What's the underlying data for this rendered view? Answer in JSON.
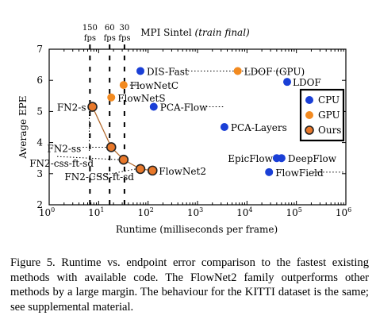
{
  "caption": "Figure 5. Runtime vs. endpoint error comparison to the fastest existing methods with available code. The FlowNet2 family outperforms other methods by a large margin. The behaviour for the KITTI dataset is the same; see supplemental material.",
  "chart_data": {
    "type": "scatter",
    "title": "MPI Sintel",
    "title_suffix": "(train final)",
    "xlabel": "Runtime (milliseconds per frame)",
    "ylabel": "Average EPE",
    "xscale": "log",
    "xlim": [
      1,
      1000000
    ],
    "ylim": [
      2,
      7
    ],
    "x_ticks": [
      1,
      10,
      100,
      1000,
      10000,
      100000,
      1000000
    ],
    "x_tick_labels": [
      "10",
      "10",
      "10",
      "10",
      "10",
      "10",
      "10"
    ],
    "x_tick_exponents": [
      "0",
      "1",
      "2",
      "3",
      "4",
      "5",
      "6"
    ],
    "y_ticks": [
      2,
      3,
      4,
      5,
      6,
      7
    ],
    "y_tick_labels": [
      "2",
      "3",
      "4",
      "5",
      "6",
      "7"
    ],
    "fps_markers": [
      {
        "label": "150",
        "unit": "fps",
        "x": 6.67
      },
      {
        "label": "60",
        "unit": "fps",
        "x": 16.7
      },
      {
        "label": "30",
        "unit": "fps",
        "x": 33.3
      }
    ],
    "legend": {
      "position": "right",
      "entries": [
        "CPU",
        "GPU",
        "Ours"
      ]
    },
    "colors": {
      "CPU": "#1a3fd6",
      "GPU": "#f28a20",
      "Ours": "#e8782a",
      "edge": "#222222",
      "line": "#b26a2e"
    },
    "series": [
      {
        "name": "CPU",
        "points": [
          {
            "label": "DIS-Fast",
            "x": 70,
            "y": 6.3
          },
          {
            "label": "PCA-Flow",
            "x": 130,
            "y": 5.15
          },
          {
            "label": "PCA-Layers",
            "x": 3500,
            "y": 4.5
          },
          {
            "label": "LDOF",
            "x": 65000,
            "y": 5.95
          },
          {
            "label": "EpicFlow",
            "x": 40000,
            "y": 3.5
          },
          {
            "label": "DeepFlow",
            "x": 50000,
            "y": 3.5
          },
          {
            "label": "FlowField",
            "x": 28000,
            "y": 3.05
          }
        ]
      },
      {
        "name": "GPU",
        "points": [
          {
            "label": "LDOF (GPU)",
            "x": 6500,
            "y": 6.3
          },
          {
            "label": "FlowNetC",
            "x": 32,
            "y": 5.85
          },
          {
            "label": "FlowNetS",
            "x": 18,
            "y": 5.45
          }
        ]
      },
      {
        "name": "Ours",
        "connected": true,
        "points": [
          {
            "label": "FN2-s",
            "x": 7.5,
            "y": 5.15
          },
          {
            "label": "FN2-ss",
            "x": 18,
            "y": 3.85
          },
          {
            "label": "FN2-css-ft-sd",
            "x": 32,
            "y": 3.45
          },
          {
            "label": "FN2-CSS-ft-sd",
            "x": 70,
            "y": 3.15
          },
          {
            "label": "FlowNet2",
            "x": 123,
            "y": 3.1
          }
        ]
      }
    ]
  }
}
